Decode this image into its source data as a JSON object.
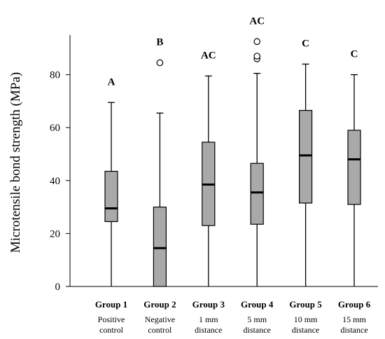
{
  "chart_data": {
    "type": "boxplot",
    "ylabel": "Microtensile bond strength (MPa)",
    "ylim": [
      0,
      95
    ],
    "yticks": [
      0,
      20,
      40,
      60,
      80
    ],
    "grid": false,
    "colors": {
      "box_fill": "#a9a9a9",
      "stroke": "#000000"
    },
    "groups": [
      {
        "name": "Group 1",
        "sub1": "Positive",
        "sub2": "control",
        "letter": "A",
        "min": 0,
        "q1": 24.5,
        "median": 29.5,
        "q3": 43.5,
        "max": 69.5,
        "outliers": []
      },
      {
        "name": "Group 2",
        "sub1": "Negative",
        "sub2": "control",
        "letter": "B",
        "min": 0,
        "q1": 0,
        "median": 14.5,
        "q3": 30,
        "max": 65.5,
        "outliers": [
          84.5
        ]
      },
      {
        "name": "Group 3",
        "sub1": "1 mm",
        "sub2": "distance",
        "letter": "AC",
        "min": 0,
        "q1": 23,
        "median": 38.5,
        "q3": 54.5,
        "max": 79.5,
        "outliers": []
      },
      {
        "name": "Group 4",
        "sub1": "5 mm",
        "sub2": "distance",
        "letter": "AC",
        "min": 0,
        "q1": 23.5,
        "median": 35.5,
        "q3": 46.5,
        "max": 80.5,
        "outliers": [
          86,
          87,
          92.5
        ]
      },
      {
        "name": "Group 5",
        "sub1": "10 mm",
        "sub2": "distance",
        "letter": "C",
        "min": 0,
        "q1": 31.5,
        "median": 49.5,
        "q3": 66.5,
        "max": 84,
        "outliers": []
      },
      {
        "name": "Group 6",
        "sub1": "15 mm",
        "sub2": "distance",
        "letter": "C",
        "min": 0,
        "q1": 31,
        "median": 48,
        "q3": 59,
        "max": 80,
        "outliers": []
      }
    ]
  }
}
